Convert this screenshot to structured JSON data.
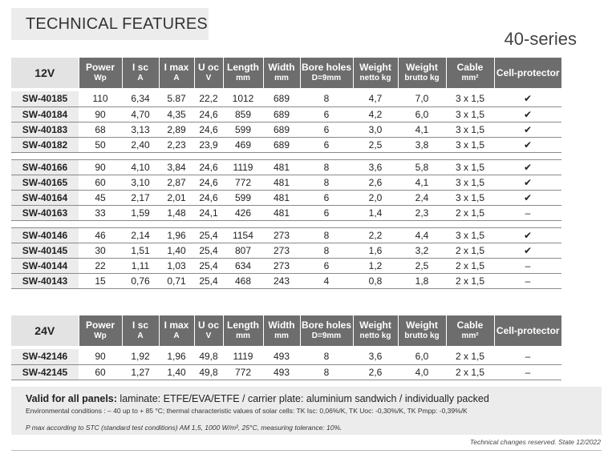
{
  "page": {
    "title": "TECHNICAL FEATURES",
    "series": "40-series"
  },
  "columns": [
    {
      "label": "Power",
      "sub": "Wp"
    },
    {
      "label": "I sc",
      "sub": "A"
    },
    {
      "label": "I max",
      "sub": "A"
    },
    {
      "label": "U oc",
      "sub": "V"
    },
    {
      "label": "Length",
      "sub": "mm"
    },
    {
      "label": "Width",
      "sub": "mm"
    },
    {
      "label": "Bore holes",
      "sub": "D=9mm"
    },
    {
      "label": "Weight",
      "sub": "netto kg"
    },
    {
      "label": "Weight",
      "sub": "brutto kg"
    },
    {
      "label": "Cable",
      "sub": "mm²"
    },
    {
      "label": "Cell-protector",
      "sub": ""
    }
  ],
  "table12v": {
    "voltage": "12V",
    "groups": [
      [
        [
          "SW-40185",
          "110",
          "6,34",
          "5.87",
          "22,2",
          "1012",
          "689",
          "8",
          "4,7",
          "7,0",
          "3 x 1,5",
          "✔"
        ],
        [
          "SW-40184",
          "90",
          "4,70",
          "4,35",
          "24,6",
          "859",
          "689",
          "6",
          "4,2",
          "6,0",
          "3 x 1,5",
          "✔"
        ],
        [
          "SW-40183",
          "68",
          "3,13",
          "2,89",
          "24,6",
          "599",
          "689",
          "6",
          "3,0",
          "4,1",
          "3 x 1,5",
          "✔"
        ],
        [
          "SW-40182",
          "50",
          "2,40",
          "2,23",
          "23,9",
          "469",
          "689",
          "6",
          "2,5",
          "3,8",
          "3 x 1,5",
          "✔"
        ]
      ],
      [
        [
          "SW-40166",
          "90",
          "4,10",
          "3,84",
          "24,6",
          "1119",
          "481",
          "8",
          "3,6",
          "5,8",
          "3 x 1,5",
          "✔"
        ],
        [
          "SW-40165",
          "60",
          "3,10",
          "2,87",
          "24,6",
          "772",
          "481",
          "8",
          "2,6",
          "4,1",
          "3 x 1,5",
          "✔"
        ],
        [
          "SW-40164",
          "45",
          "2,17",
          "2,01",
          "24,6",
          "599",
          "481",
          "6",
          "2,0",
          "2,4",
          "3 x 1,5",
          "✔"
        ],
        [
          "SW-40163",
          "33",
          "1,59",
          "1,48",
          "24,1",
          "426",
          "481",
          "6",
          "1,4",
          "2,3",
          "2 x 1,5",
          "–"
        ]
      ],
      [
        [
          "SW-40146",
          "46",
          "2,14",
          "1,96",
          "25,4",
          "1154",
          "273",
          "8",
          "2,2",
          "4,4",
          "3 x 1,5",
          "✔"
        ],
        [
          "SW-40145",
          "30",
          "1,51",
          "1,40",
          "25,4",
          "807",
          "273",
          "8",
          "1,6",
          "3,2",
          "2 x 1,5",
          "✔"
        ],
        [
          "SW-40144",
          "22",
          "1,11",
          "1,03",
          "25,4",
          "634",
          "273",
          "6",
          "1,2",
          "2,5",
          "2 x 1,5",
          "–"
        ],
        [
          "SW-40143",
          "15",
          "0,76",
          "0,71",
          "25,4",
          "468",
          "243",
          "4",
          "0,8",
          "1,8",
          "2 x 1,5",
          "–"
        ]
      ]
    ]
  },
  "table24v": {
    "voltage": "24V",
    "groups": [
      [
        [
          "SW-42146",
          "90",
          "1,92",
          "1,96",
          "49,8",
          "1119",
          "493",
          "8",
          "3,6",
          "6,0",
          "2 x 1,5",
          "–"
        ],
        [
          "SW-42145",
          "60",
          "1,27",
          "1,40",
          "49,8",
          "772",
          "493",
          "8",
          "2,6",
          "4,0",
          "2 x 1,5",
          "–"
        ]
      ]
    ]
  },
  "footer": {
    "valid_label": "Valid for all panels:",
    "valid_text": " laminate: ETFE/EVA/ETFE / carrier plate: aluminium sandwich / individually packed",
    "environment": "Environmental conditions : – 40 up to + 85 °C;  thermal characteristic values of solar cells: TK Isc: 0,06%/K, TK Uoc: -0,30%/K, TK Pmpp: -0,39%/K",
    "pmax_note": "P max according to STC (standard test conditions) AM 1,5, 1000 W/m², 25°C, measuring tolerance: 10%.",
    "changes": "Technical changes reserved. State 12/2022"
  }
}
